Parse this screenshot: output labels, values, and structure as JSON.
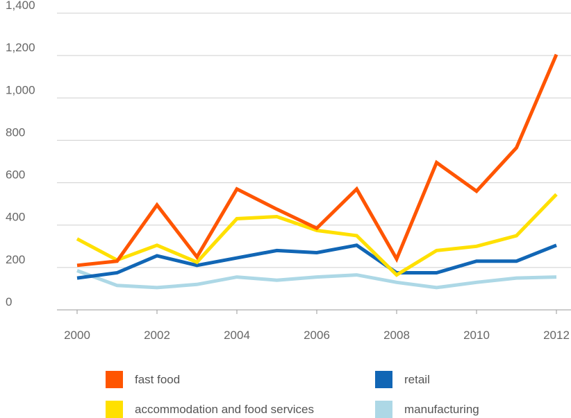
{
  "chart_data": {
    "type": "line",
    "title": "",
    "xlabel": "",
    "ylabel": "",
    "x": [
      2000,
      2001,
      2002,
      2003,
      2004,
      2005,
      2006,
      2007,
      2008,
      2009,
      2010,
      2011,
      2012
    ],
    "x_tick_labels": [
      "2000",
      "2002",
      "2004",
      "2006",
      "2008",
      "2010",
      "2012"
    ],
    "y_tick_labels": [
      "0",
      "200",
      "400",
      "600",
      "800",
      "1,000",
      "1,200",
      "1,400"
    ],
    "ylim": [
      0,
      1400
    ],
    "grid": "horizontal",
    "legend_position": "bottom",
    "series": [
      {
        "name": "fast food",
        "color": "#ff5500",
        "values": [
          210,
          230,
          495,
          250,
          570,
          475,
          385,
          570,
          240,
          695,
          560,
          765,
          1205
        ]
      },
      {
        "name": "accommodation and food services",
        "color": "#ffe000",
        "values": [
          335,
          235,
          305,
          225,
          430,
          440,
          375,
          350,
          165,
          280,
          300,
          350,
          545
        ]
      },
      {
        "name": "retail",
        "color": "#1166b5",
        "values": [
          150,
          175,
          255,
          210,
          245,
          280,
          270,
          305,
          175,
          175,
          230,
          230,
          305
        ]
      },
      {
        "name": "manufacturing",
        "color": "#add8e6",
        "values": [
          185,
          115,
          105,
          120,
          155,
          140,
          155,
          165,
          130,
          105,
          130,
          150,
          155
        ]
      }
    ]
  }
}
